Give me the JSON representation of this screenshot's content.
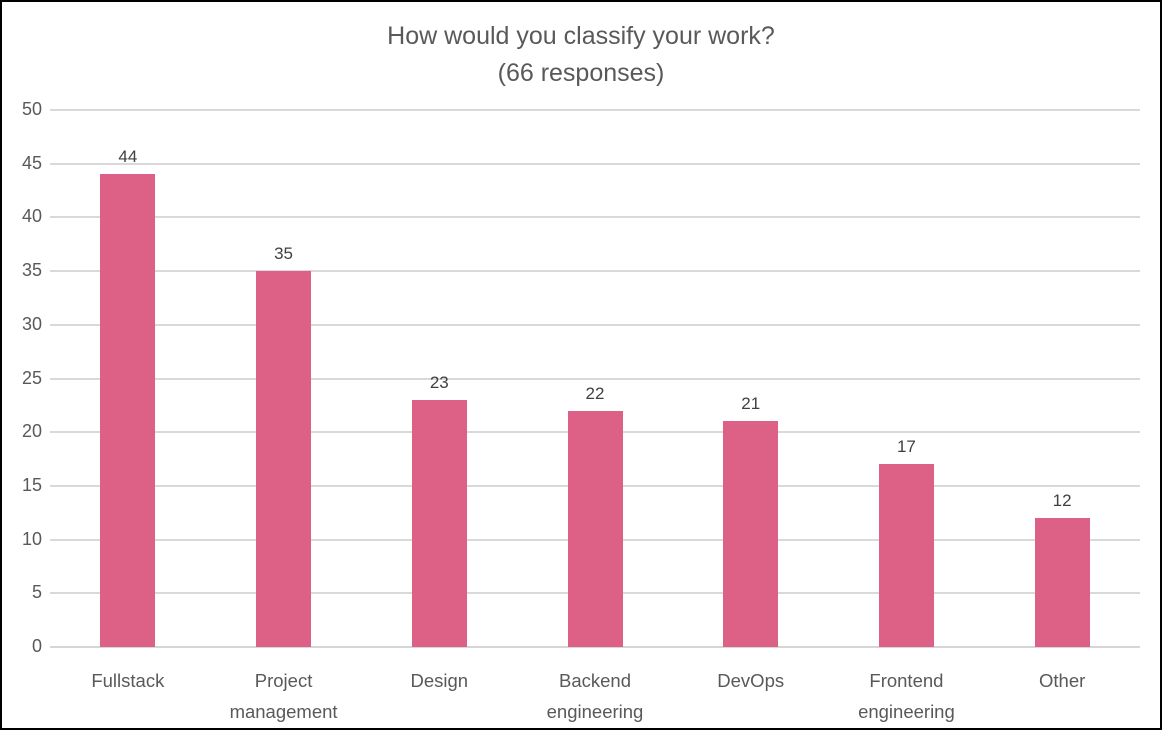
{
  "chart_data": {
    "type": "bar",
    "title": "How would you classify your work?",
    "subtitle": "(66 responses)",
    "categories": [
      "Fullstack",
      "Project management",
      "Design",
      "Backend engineering",
      "DevOps",
      "Frontend engineering",
      "Other"
    ],
    "values": [
      44,
      35,
      23,
      22,
      21,
      17,
      12
    ],
    "ylabel": "",
    "xlabel": "",
    "ylim": [
      0,
      50
    ],
    "ytick_step": 5,
    "yticks": [
      0,
      5,
      10,
      15,
      20,
      25,
      30,
      35,
      40,
      45,
      50
    ],
    "grid": true,
    "legend": "none",
    "colors": {
      "bar": "#dd6186",
      "axis_labels": "#595959",
      "value_labels": "#404040",
      "title": "#595959",
      "gridline": "#d9d9d9",
      "axis_line": "#d6d6d6",
      "frame_border": "#000000",
      "background": "#ffffff"
    }
  }
}
